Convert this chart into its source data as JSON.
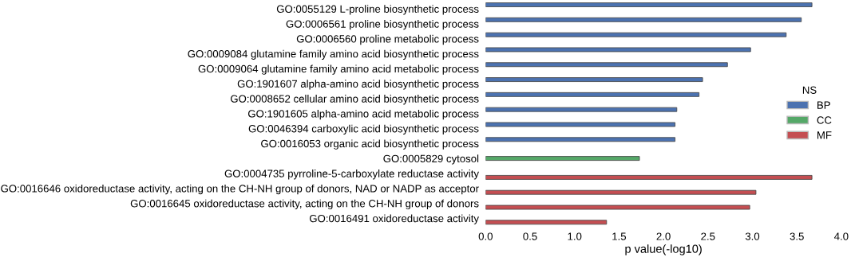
{
  "chart_data": {
    "type": "bar",
    "orientation": "horizontal",
    "xlabel": "p value(-log10)",
    "legend_title": "NS",
    "legend": "right",
    "grid": false,
    "categories": [
      "GO:0055129 L-proline biosynthetic process",
      "GO:0006561 proline biosynthetic process",
      "GO:0006560 proline metabolic process",
      "GO:0009084 glutamine family amino acid biosynthetic process",
      "GO:0009064 glutamine family amino acid metabolic process",
      "GO:1901607 alpha-amino acid biosynthetic process",
      "GO:0008652 cellular amino acid biosynthetic process",
      "GO:1901605 alpha-amino acid metabolic process",
      "GO:0046394 carboxylic acid biosynthetic process",
      "GO:0016053 organic acid biosynthetic process",
      "GO:0005829 cytosol",
      "GO:0004735 pyrroline-5-carboxylate reductase activity",
      "GO:0016646 oxidoreductase activity, acting on the CH-NH group of donors, NAD or NADP as acceptor",
      "GO:0016645 oxidoreductase activity, acting on the CH-NH group of donors",
      "GO:0016491 oxidoreductase activity"
    ],
    "series": [
      {
        "name": "BP",
        "color": "#4c72b0",
        "values": [
          3.67,
          3.55,
          3.38,
          2.98,
          2.72,
          2.44,
          2.4,
          2.15,
          2.13,
          2.13,
          null,
          null,
          null,
          null,
          null
        ]
      },
      {
        "name": "CC",
        "color": "#55a868",
        "values": [
          null,
          null,
          null,
          null,
          null,
          null,
          null,
          null,
          null,
          null,
          1.73,
          null,
          null,
          null,
          null
        ]
      },
      {
        "name": "MF",
        "color": "#c44e52",
        "values": [
          null,
          null,
          null,
          null,
          null,
          null,
          null,
          null,
          null,
          null,
          null,
          3.67,
          3.04,
          2.97,
          1.36
        ]
      }
    ],
    "xlim": [
      0.0,
      4.0
    ],
    "xticks": [
      {
        "value": 0,
        "label": "0.0"
      },
      {
        "value": 0.5,
        "label": "0.5"
      },
      {
        "value": 1,
        "label": "1.0"
      },
      {
        "value": 1.5,
        "label": "1.5"
      },
      {
        "value": 2,
        "label": "2.0"
      },
      {
        "value": 2.5,
        "label": "2.5"
      },
      {
        "value": 3,
        "label": "3.0"
      },
      {
        "value": 3.5,
        "label": "3.5"
      },
      {
        "value": 4,
        "label": "4.0"
      }
    ]
  }
}
